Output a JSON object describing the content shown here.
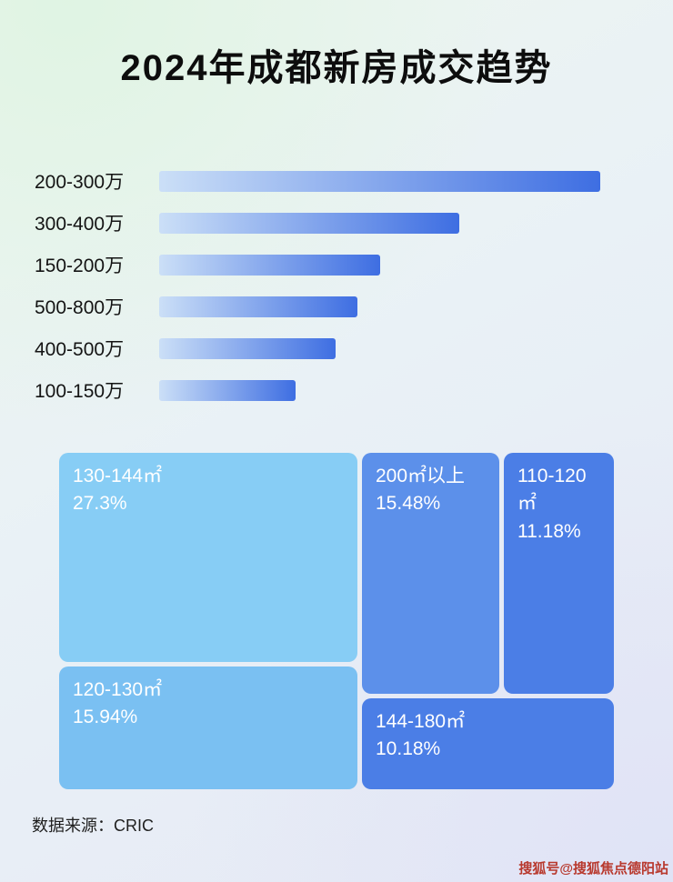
{
  "page": {
    "title": "2024年成都新房成交趋势",
    "source": "数据来源：CRIC",
    "watermark": "搜狐号@搜狐焦点德阳站",
    "watermark_color": "#b8392e"
  },
  "chart_data": [
    {
      "type": "bar",
      "orientation": "horizontal",
      "categories": [
        "200-300万",
        "300-400万",
        "150-200万",
        "500-800万",
        "400-500万",
        "100-150万"
      ],
      "values": [
        100,
        68,
        50,
        45,
        40,
        31
      ],
      "value_units": "relative bar length, % of longest (no numeric axis shown)",
      "bar_gradient": [
        "#cbdff7",
        "#3e6ee2"
      ],
      "grid": false,
      "legend": false
    },
    {
      "type": "treemap",
      "items": [
        {
          "label": "130-144㎡",
          "value": "27.3%",
          "color": "#87CDF5"
        },
        {
          "label": "200㎡以上",
          "value": "15.48%",
          "color": "#5C90EA"
        },
        {
          "label": "110-120㎡",
          "value": "11.18%",
          "color": "#4B7EE6"
        },
        {
          "label": "120-130㎡",
          "value": "15.94%",
          "color": "#7AC0F2"
        },
        {
          "label": "144-180㎡",
          "value": "10.18%",
          "color": "#4B7EE6"
        }
      ]
    }
  ]
}
